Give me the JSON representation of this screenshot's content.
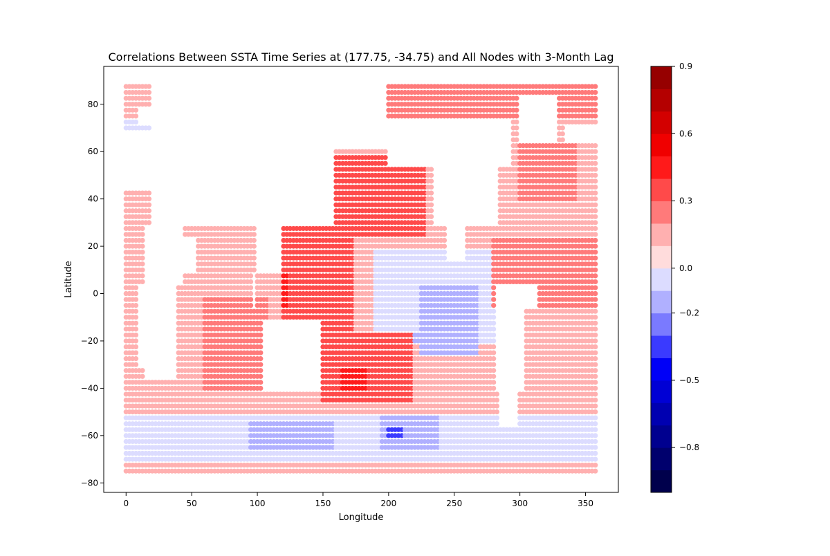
{
  "chart_data": {
    "type": "scatter",
    "title": "Correlations Between SSTA Time Series at (177.75, -34.75) and All Nodes with 3-Month Lag",
    "xlabel": "Longitude",
    "ylabel": "Latitude",
    "xlim": [
      -17,
      375
    ],
    "ylim": [
      -84,
      96
    ],
    "xticks": [
      0,
      50,
      100,
      150,
      200,
      250,
      300,
      350
    ],
    "yticks": [
      -80,
      -60,
      -40,
      -20,
      0,
      20,
      40,
      60,
      80
    ],
    "grid": false,
    "colorbar": {
      "vmin": -1.0,
      "vmax": 0.9,
      "ticks": [
        -0.8,
        -0.5,
        -0.2,
        0.0,
        0.3,
        0.6,
        0.9
      ],
      "tick_labels": [
        "−0.8",
        "−0.5",
        "−0.2",
        "0.0",
        "0.3",
        "0.6",
        "0.9"
      ],
      "bins": [
        {
          "lo": -1.0,
          "hi": -0.9,
          "color": "#00004c"
        },
        {
          "lo": -0.9,
          "hi": -0.8,
          "color": "#00006d"
        },
        {
          "lo": -0.8,
          "hi": -0.7,
          "color": "#00008f"
        },
        {
          "lo": -0.7,
          "hi": -0.6,
          "color": "#0000b1"
        },
        {
          "lo": -0.6,
          "hi": -0.5,
          "color": "#0000d5"
        },
        {
          "lo": -0.5,
          "hi": -0.4,
          "color": "#0000f7"
        },
        {
          "lo": -0.4,
          "hi": -0.3,
          "color": "#3a3aff"
        },
        {
          "lo": -0.3,
          "hi": -0.2,
          "color": "#7a7aff"
        },
        {
          "lo": -0.2,
          "hi": -0.1,
          "color": "#b0b0ff"
        },
        {
          "lo": -0.1,
          "hi": 0.0,
          "color": "#dcdcff"
        },
        {
          "lo": 0.0,
          "hi": 0.1,
          "color": "#ffdcdc"
        },
        {
          "lo": 0.1,
          "hi": 0.2,
          "color": "#ffb0b0"
        },
        {
          "lo": 0.2,
          "hi": 0.3,
          "color": "#ff7a7a"
        },
        {
          "lo": 0.3,
          "hi": 0.4,
          "color": "#ff4a4a"
        },
        {
          "lo": 0.4,
          "hi": 0.5,
          "color": "#ff1a1a"
        },
        {
          "lo": 0.5,
          "hi": 0.6,
          "color": "#f00000"
        },
        {
          "lo": 0.6,
          "hi": 0.7,
          "color": "#d30000"
        },
        {
          "lo": 0.7,
          "hi": 0.8,
          "color": "#b40000"
        },
        {
          "lo": 0.8,
          "hi": 0.9,
          "color": "#960000"
        },
        {
          "lo": 0.9,
          "hi": 1.0,
          "color": "#7a0000"
        }
      ]
    },
    "grid_spacing_deg": 2.5,
    "lon_range": [
      0,
      357.5
    ],
    "lat_range": [
      -75,
      87.5
    ],
    "regions": [
      {
        "lon": [
          0,
          360
        ],
        "lat": [
          -90,
          90
        ],
        "value": 0.15
      },
      {
        "lon": [
          0,
          360
        ],
        "lat": [
          -72,
          -50
        ],
        "value": -0.05
      },
      {
        "lon": [
          95,
          160
        ],
        "lat": [
          -66,
          -54
        ],
        "value": -0.15
      },
      {
        "lon": [
          195,
          240
        ],
        "lat": [
          -66,
          -52
        ],
        "value": -0.2
      },
      {
        "lon": [
          198,
          212
        ],
        "lat": [
          -62,
          -56
        ],
        "value": -0.35
      },
      {
        "lon": [
          0,
          360
        ],
        "lat": [
          -75,
          -72
        ],
        "value": 0.15
      },
      {
        "lon": [
          190,
          285
        ],
        "lat": [
          -20,
          20
        ],
        "value": -0.05
      },
      {
        "lon": [
          225,
          270
        ],
        "lat": [
          -25,
          5
        ],
        "value": -0.15
      },
      {
        "lon": [
          210,
          260
        ],
        "lat": [
          -20,
          -15
        ],
        "value": -0.2
      },
      {
        "lon": [
          120,
          175
        ],
        "lat": [
          -30,
          40
        ],
        "value": 0.35
      },
      {
        "lon": [
          150,
          220
        ],
        "lat": [
          -45,
          -15
        ],
        "value": 0.35
      },
      {
        "lon": [
          165,
          185
        ],
        "lat": [
          -40,
          -32
        ],
        "value": 0.45
      },
      {
        "lon": [
          118,
          125
        ],
        "lat": [
          -5,
          10
        ],
        "value": 0.45
      },
      {
        "lon": [
          160,
          230
        ],
        "lat": [
          25,
          60
        ],
        "value": 0.3
      },
      {
        "lon": [
          0,
          30
        ],
        "lat": [
          70,
          75
        ],
        "value": -0.05
      },
      {
        "lon": [
          60,
          110
        ],
        "lat": [
          -40,
          0
        ],
        "value": 0.25
      },
      {
        "lon": [
          280,
          360
        ],
        "lat": [
          -5,
          25
        ],
        "value": 0.25
      },
      {
        "lon": [
          300,
          345
        ],
        "lat": [
          40,
          65
        ],
        "value": 0.25
      },
      {
        "lon": [
          150,
          360
        ],
        "lat": [
          75,
          90
        ],
        "value": 0.25
      }
    ],
    "land": [
      {
        "lon": [
          105,
          150
        ],
        "lat": [
          -40,
          -12
        ]
      },
      {
        "lon": [
          97,
          100
        ],
        "lat": [
          -5,
          10
        ]
      },
      {
        "lon": [
          100,
          120
        ],
        "lat": [
          10,
          45
        ]
      },
      {
        "lon": [
          0,
          20
        ],
        "lat": [
          45,
          70
        ]
      },
      {
        "lon": [
          20,
          160
        ],
        "lat": [
          30,
          90
        ]
      },
      {
        "lon": [
          160,
          200
        ],
        "lat": [
          62,
          90
        ]
      },
      {
        "lon": [
          200,
          295
        ],
        "lat": [
          55,
          75
        ]
      },
      {
        "lon": [
          235,
          285
        ],
        "lat": [
          28,
          55
        ]
      },
      {
        "lon": [
          245,
          258
        ],
        "lat": [
          15,
          28
        ]
      },
      {
        "lon": [
          282,
          305
        ],
        "lat": [
          -40,
          5
        ]
      },
      {
        "lon": [
          285,
          300
        ],
        "lat": [
          -55,
          -40
        ]
      },
      {
        "lon": [
          305,
          315
        ],
        "lat": [
          -5,
          5
        ]
      },
      {
        "lon": [
          8,
          15
        ],
        "lat": [
          -30,
          5
        ]
      },
      {
        "lon": [
          15,
          40
        ],
        "lat": [
          -35,
          5
        ]
      },
      {
        "lon": [
          15,
          45
        ],
        "lat": [
          5,
          30
        ]
      },
      {
        "lon": [
          45,
          55
        ],
        "lat": [
          10,
          25
        ]
      },
      {
        "lon": [
          300,
          330
        ],
        "lat": [
          65,
          85
        ]
      },
      {
        "lon": [
          335,
          360
        ],
        "lat": [
          65,
          72
        ]
      },
      {
        "lon": [
          10,
          40
        ],
        "lat": [
          72,
          80
        ]
      },
      {
        "lon": [
          0,
          360
        ],
        "lat": [
          -90,
          -76
        ]
      }
    ]
  }
}
